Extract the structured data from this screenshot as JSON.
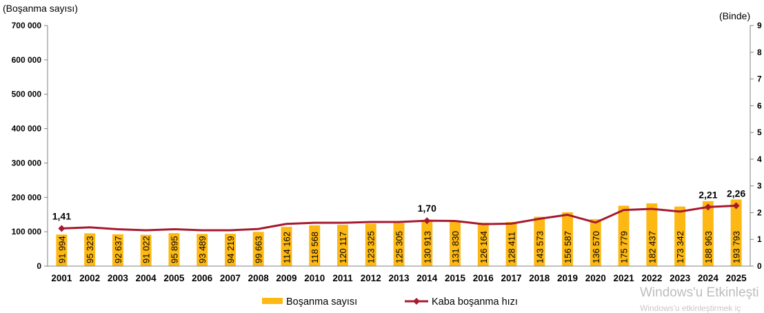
{
  "chart_data": {
    "type": "bar",
    "left_axis_label": "(Boşanma sayısı)",
    "right_axis_label": "(Binde)",
    "categories": [
      "2001",
      "2002",
      "2003",
      "2004",
      "2005",
      "2006",
      "2007",
      "2008",
      "2009",
      "2010",
      "2011",
      "2012",
      "2013",
      "2014",
      "2015",
      "2016",
      "2017",
      "2018",
      "2019",
      "2020",
      "2021",
      "2022",
      "2023",
      "2024",
      "2025"
    ],
    "y_left_ticks": [
      "0",
      "100 000",
      "200 000",
      "300 000",
      "400 000",
      "500 000",
      "600 000",
      "700 000"
    ],
    "y_left_lim": [
      0,
      700000
    ],
    "y_right_ticks": [
      "0",
      "1",
      "2",
      "3",
      "4",
      "5",
      "6",
      "7",
      "8",
      "9"
    ],
    "y_right_lim": [
      0,
      9
    ],
    "grid": false,
    "legend_position": "bottom",
    "series": [
      {
        "name": "Boşanma sayısı",
        "kind": "bar",
        "axis": "left",
        "color": "#FDB813",
        "values": [
          91994,
          95323,
          92637,
          91022,
          95895,
          93489,
          94219,
          99663,
          114162,
          118568,
          120117,
          123325,
          125305,
          130913,
          131830,
          126164,
          128411,
          143573,
          156587,
          136570,
          175779,
          182437,
          173342,
          188963,
          193793
        ],
        "labels": [
          "91 994",
          "95 323",
          "92 637",
          "91 022",
          "95 895",
          "93 489",
          "94 219",
          "99 663",
          "114 162",
          "118 568",
          "120 117",
          "123 325",
          "125 305",
          "130 913",
          "131 830",
          "126 164",
          "128 411",
          "143 573",
          "156 587",
          "136 570",
          "175 779",
          "182 437",
          "173 342",
          "188 963",
          "193 793"
        ]
      },
      {
        "name": "Kaba boşanma hızı",
        "kind": "line",
        "axis": "right",
        "color": "#A6192E",
        "values": [
          1.41,
          1.45,
          1.38,
          1.34,
          1.38,
          1.34,
          1.34,
          1.39,
          1.58,
          1.62,
          1.62,
          1.65,
          1.65,
          1.7,
          1.69,
          1.57,
          1.59,
          1.77,
          1.92,
          1.63,
          2.1,
          2.14,
          2.04,
          2.21,
          2.26
        ],
        "annotations": [
          {
            "index": 0,
            "text": "1,41"
          },
          {
            "index": 13,
            "text": "1,70"
          },
          {
            "index": 23,
            "text": "2,21"
          },
          {
            "index": 24,
            "text": "2,26"
          }
        ]
      }
    ]
  },
  "watermark": {
    "line1": "Windows'u Etkinleşti",
    "line2": "Windows'u etkinleştirmek iç"
  }
}
